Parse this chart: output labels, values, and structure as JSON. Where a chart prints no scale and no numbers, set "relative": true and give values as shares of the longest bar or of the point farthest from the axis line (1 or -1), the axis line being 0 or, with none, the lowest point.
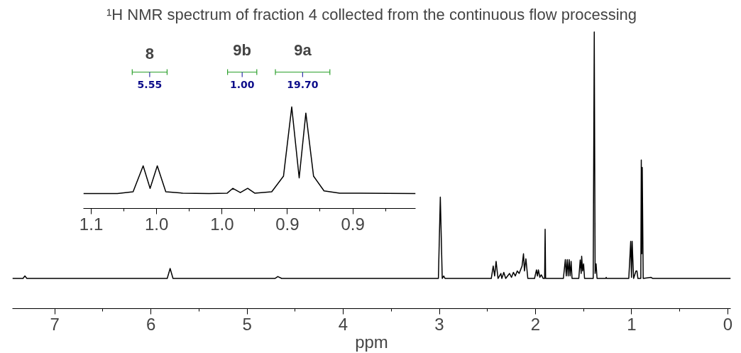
{
  "chart_data": [
    {
      "type": "line",
      "title": "¹H NMR spectrum of fraction 4 collected from the continuous flow processing",
      "xlabel": "ppm",
      "relative": true,
      "grid": false,
      "marker": "none",
      "line_style": "solid",
      "xlim": [
        7.44,
        -0.03
      ],
      "xticks": [
        7,
        6,
        5,
        4,
        3,
        2,
        1,
        0
      ],
      "series": [
        {
          "color": "#000000",
          "x": [
            7.44,
            7.33,
            7.31,
            7.29,
            5.83,
            5.8,
            5.77,
            4.71,
            4.68,
            4.64,
            3.01,
            2.99,
            2.97,
            2.955,
            2.94,
            2.46,
            2.44,
            2.425,
            2.41,
            2.39,
            2.36,
            2.35,
            2.33,
            2.31,
            2.27,
            2.25,
            2.23,
            2.21,
            2.19,
            2.17,
            2.15,
            2.14,
            2.125,
            2.115,
            2.1,
            2.08,
            2.01,
            1.99,
            1.98,
            1.97,
            1.955,
            1.94,
            1.92,
            1.905,
            1.9,
            1.895,
            1.71,
            1.69,
            1.68,
            1.67,
            1.66,
            1.65,
            1.64,
            1.63,
            1.62,
            1.55,
            1.535,
            1.525,
            1.52,
            1.51,
            1.5,
            1.49,
            1.4,
            1.389,
            1.38,
            1.37,
            1.36,
            1.27,
            1.265,
            1.26,
            1.03,
            1.01,
            1.002,
            0.995,
            0.98,
            0.955,
            0.945,
            0.935,
            0.905,
            0.9,
            0.895,
            0.89,
            0.88,
            0.8,
            0.78,
            -0.03
          ],
          "values": [
            0.109,
            0.109,
            0.118,
            0.109,
            0.109,
            0.145,
            0.109,
            0.109,
            0.116,
            0.109,
            0.109,
            0.403,
            0.109,
            0.118,
            0.109,
            0.109,
            0.154,
            0.118,
            0.171,
            0.109,
            0.127,
            0.109,
            0.131,
            0.109,
            0.127,
            0.113,
            0.131,
            0.118,
            0.136,
            0.127,
            0.145,
            0.154,
            0.198,
            0.136,
            0.18,
            0.109,
            0.109,
            0.14,
            0.118,
            0.14,
            0.113,
            0.122,
            0.109,
            0.109,
            0.287,
            0.109,
            0.109,
            0.177,
            0.118,
            0.177,
            0.118,
            0.177,
            0.118,
            0.171,
            0.109,
            0.109,
            0.176,
            0.127,
            0.189,
            0.136,
            0.162,
            0.109,
            0.109,
            1.0,
            0.127,
            0.162,
            0.109,
            0.109,
            0.113,
            0.109,
            0.109,
            0.243,
            0.113,
            0.243,
            0.109,
            0.136,
            0.136,
            0.109,
            0.109,
            0.537,
            0.198,
            0.51,
            0.109,
            0.113,
            0.109,
            0.109
          ]
        }
      ]
    },
    {
      "type": "line",
      "relative": true,
      "grid": false,
      "marker": "none",
      "line_style": "solid",
      "xlim": [
        1.056,
        0.802
      ],
      "xticks": [
        {
          "value": 1.05,
          "label": "1.1"
        },
        {
          "value": 1.0,
          "label": "1.0"
        },
        {
          "value": 0.95,
          "label": "1.0"
        },
        {
          "value": 0.9,
          "label": "0.9"
        },
        {
          "value": 0.85,
          "label": "0.9"
        }
      ],
      "series": [
        {
          "color": "#000000",
          "x": [
            1.056,
            1.03,
            1.018,
            1.0103,
            1.005,
            0.9995,
            0.993,
            0.98,
            0.96,
            0.946,
            0.9418,
            0.936,
            0.9304,
            0.925,
            0.912,
            0.903,
            0.8967,
            0.891,
            0.8859,
            0.88,
            0.872,
            0.86,
            0.802
          ],
          "values": [
            0.147,
            0.147,
            0.164,
            0.42,
            0.198,
            0.42,
            0.164,
            0.151,
            0.147,
            0.151,
            0.198,
            0.156,
            0.198,
            0.151,
            0.164,
            0.318,
            1.0,
            0.301,
            0.94,
            0.318,
            0.173,
            0.151,
            0.147
          ]
        }
      ],
      "annotations": [
        "8",
        "5.55",
        "9b",
        "1.00",
        "9a",
        "19.70"
      ]
    }
  ]
}
